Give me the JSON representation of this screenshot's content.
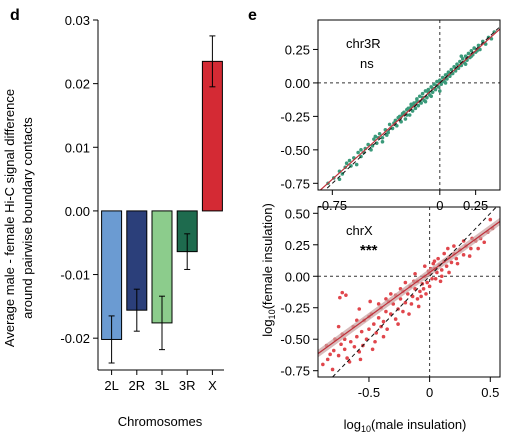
{
  "chart_data": [
    {
      "panel_label": "d",
      "type": "bar",
      "categories": [
        "2L",
        "2R",
        "3L",
        "3R",
        "X"
      ],
      "values": [
        -0.0202,
        -0.0156,
        -0.0176,
        -0.0064,
        0.0235
      ],
      "error": [
        0.0037,
        0.0033,
        0.0042,
        0.0028,
        0.004
      ],
      "colors": [
        "#6b9bd2",
        "#2b3f7a",
        "#8ccc8c",
        "#1e6b4e",
        "#d42a34"
      ],
      "xlabel": "Chromosomes",
      "ylabel": [
        "Average male - female Hi-C signal difference",
        "around pairwise boundary contacts"
      ],
      "ylim": [
        -0.025,
        0.03
      ],
      "yticks": [
        -0.02,
        -0.01,
        0.0,
        0.01,
        0.02,
        0.03
      ],
      "ytick_labels": [
        "-0.02",
        "-0.01",
        "0.00",
        "0.01",
        "0.02",
        "0.03"
      ]
    },
    {
      "panel_label": "e",
      "type": "scatter",
      "shared_ylabel": "log10(female insulation)",
      "ylabel_base": "log",
      "ylabel_sub": "10",
      "ylabel_rest": "(female insulation)",
      "xlabel_base": "log",
      "xlabel_sub": "10",
      "xlabel_rest": "(male insulation)",
      "point_color": "#3a9a7a",
      "panels": [
        {
          "name": "chr3R",
          "significance": "ns",
          "point_color": "#3a9a7a",
          "xlim": [
            -0.85,
            0.42
          ],
          "ylim": [
            -0.8,
            0.47
          ],
          "xticks": [
            -0.75,
            0,
            0.25
          ],
          "xtick_labels": [
            "-0.75",
            "0",
            "0.25"
          ],
          "yticks": [
            0.25,
            0.0,
            -0.25,
            -0.5,
            -0.75
          ],
          "ytick_labels": [
            "0.25",
            "0.00",
            "-0.25",
            "-0.50",
            "-0.75"
          ],
          "fit": {
            "slope": 0.96,
            "intercept": 0.0
          },
          "points": [
            [
              -0.78,
              -0.75
            ],
            [
              -0.74,
              -0.71
            ],
            [
              -0.7,
              -0.66
            ],
            [
              -0.66,
              -0.63
            ],
            [
              -0.63,
              -0.58
            ],
            [
              -0.6,
              -0.56
            ],
            [
              -0.57,
              -0.52
            ],
            [
              -0.55,
              -0.55
            ],
            [
              -0.52,
              -0.49
            ],
            [
              -0.5,
              -0.46
            ],
            [
              -0.48,
              -0.5
            ],
            [
              -0.46,
              -0.42
            ],
            [
              -0.44,
              -0.45
            ],
            [
              -0.42,
              -0.38
            ],
            [
              -0.4,
              -0.41
            ],
            [
              -0.38,
              -0.35
            ],
            [
              -0.36,
              -0.37
            ],
            [
              -0.35,
              -0.31
            ],
            [
              -0.33,
              -0.34
            ],
            [
              -0.31,
              -0.28
            ],
            [
              -0.3,
              -0.32
            ],
            [
              -0.28,
              -0.25
            ],
            [
              -0.27,
              -0.29
            ],
            [
              -0.25,
              -0.22
            ],
            [
              -0.24,
              -0.27
            ],
            [
              -0.22,
              -0.19
            ],
            [
              -0.21,
              -0.24
            ],
            [
              -0.2,
              -0.16
            ],
            [
              -0.19,
              -0.21
            ],
            [
              -0.18,
              -0.15
            ],
            [
              -0.17,
              -0.19
            ],
            [
              -0.16,
              -0.12
            ],
            [
              -0.15,
              -0.17
            ],
            [
              -0.14,
              -0.1
            ],
            [
              -0.13,
              -0.15
            ],
            [
              -0.12,
              -0.08
            ],
            [
              -0.11,
              -0.13
            ],
            [
              -0.1,
              -0.06
            ],
            [
              -0.09,
              -0.11
            ],
            [
              -0.08,
              -0.05
            ],
            [
              -0.07,
              -0.09
            ],
            [
              -0.06,
              -0.03
            ],
            [
              -0.05,
              -0.07
            ],
            [
              -0.04,
              -0.01
            ],
            [
              -0.03,
              -0.05
            ],
            [
              -0.02,
              0.01
            ],
            [
              -0.01,
              -0.03
            ],
            [
              0.0,
              0.02
            ],
            [
              0.01,
              -0.01
            ],
            [
              0.02,
              0.04
            ],
            [
              0.03,
              0.01
            ],
            [
              0.04,
              0.06
            ],
            [
              0.05,
              0.03
            ],
            [
              0.06,
              0.08
            ],
            [
              0.07,
              0.05
            ],
            [
              0.08,
              0.1
            ],
            [
              0.09,
              0.07
            ],
            [
              0.1,
              0.12
            ],
            [
              0.11,
              0.09
            ],
            [
              0.12,
              0.14
            ],
            [
              0.13,
              0.11
            ],
            [
              0.14,
              0.16
            ],
            [
              0.15,
              0.13
            ],
            [
              0.16,
              0.18
            ],
            [
              0.17,
              0.15
            ],
            [
              0.18,
              0.2
            ],
            [
              0.19,
              0.17
            ],
            [
              0.2,
              0.22
            ],
            [
              0.21,
              0.19
            ],
            [
              0.22,
              0.24
            ],
            [
              0.23,
              0.21
            ],
            [
              0.24,
              0.26
            ],
            [
              0.25,
              0.23
            ],
            [
              0.27,
              0.28
            ],
            [
              0.28,
              0.25
            ],
            [
              0.3,
              0.31
            ],
            [
              0.32,
              0.29
            ],
            [
              0.34,
              0.34
            ],
            [
              0.36,
              0.33
            ],
            [
              0.38,
              0.38
            ],
            [
              -0.32,
              -0.3
            ],
            [
              -0.29,
              -0.26
            ],
            [
              -0.26,
              -0.23
            ],
            [
              -0.23,
              -0.2
            ],
            [
              -0.2,
              -0.18
            ],
            [
              -0.16,
              -0.14
            ],
            [
              -0.12,
              -0.11
            ],
            [
              -0.08,
              -0.07
            ],
            [
              -0.05,
              -0.04
            ],
            [
              -0.02,
              -0.02
            ],
            [
              0.01,
              0.01
            ],
            [
              0.03,
              0.03
            ],
            [
              0.05,
              0.06
            ],
            [
              0.08,
              0.07
            ],
            [
              0.11,
              0.11
            ],
            [
              0.14,
              0.13
            ],
            [
              -0.1,
              -0.14
            ],
            [
              -0.06,
              -0.1
            ],
            [
              0.0,
              -0.06
            ],
            [
              0.04,
              0.0
            ],
            [
              -0.4,
              -0.44
            ],
            [
              -0.45,
              -0.4
            ],
            [
              -0.55,
              -0.5
            ],
            [
              -0.58,
              -0.61
            ],
            [
              -0.65,
              -0.6
            ],
            [
              -0.68,
              -0.68
            ],
            [
              0.15,
              0.2
            ],
            [
              0.18,
              0.14
            ],
            [
              0.22,
              0.2
            ],
            [
              0.26,
              0.24
            ],
            [
              -0.7,
              -0.72
            ],
            [
              -0.62,
              -0.62
            ],
            [
              -0.53,
              -0.52
            ],
            [
              -0.47,
              -0.47
            ],
            [
              -0.43,
              -0.41
            ],
            [
              -0.37,
              -0.39
            ],
            [
              -0.27,
              -0.25
            ],
            [
              -0.23,
              -0.24
            ],
            [
              -0.18,
              -0.17
            ],
            [
              -0.14,
              -0.14
            ]
          ]
        },
        {
          "name": "chrX",
          "significance": "***",
          "point_color": "#e0464c",
          "xlim": [
            -0.92,
            0.58
          ],
          "ylim": [
            -0.8,
            0.55
          ],
          "xticks": [
            -0.5,
            0,
            0.5
          ],
          "xtick_labels": [
            "-0.5",
            "0",
            "0.5"
          ],
          "yticks": [
            0.5,
            0.25,
            0.0,
            -0.25,
            -0.5,
            -0.75
          ],
          "ytick_labels": [
            "0.50",
            "0.25",
            "0.00",
            "-0.25",
            "-0.50",
            "-0.75"
          ],
          "fit": {
            "slope": 0.7,
            "intercept": 0.03
          },
          "points": [
            [
              -0.88,
              -0.7
            ],
            [
              -0.85,
              -0.55
            ],
            [
              -0.82,
              -0.62
            ],
            [
              -0.8,
              -0.74
            ],
            [
              -0.78,
              -0.5
            ],
            [
              -0.75,
              -0.63
            ],
            [
              -0.72,
              -0.46
            ],
            [
              -0.7,
              -0.58
            ],
            [
              -0.68,
              -0.65
            ],
            [
              -0.65,
              -0.52
            ],
            [
              -0.63,
              -0.4
            ],
            [
              -0.6,
              -0.48
            ],
            [
              -0.58,
              -0.6
            ],
            [
              -0.56,
              -0.44
            ],
            [
              -0.54,
              -0.35
            ],
            [
              -0.52,
              -0.5
            ],
            [
              -0.5,
              -0.42
            ],
            [
              -0.48,
              -0.3
            ],
            [
              -0.46,
              -0.38
            ],
            [
              -0.44,
              -0.45
            ],
            [
              -0.42,
              -0.33
            ],
            [
              -0.4,
              -0.25
            ],
            [
              -0.38,
              -0.36
            ],
            [
              -0.36,
              -0.28
            ],
            [
              -0.34,
              -0.2
            ],
            [
              -0.32,
              -0.3
            ],
            [
              -0.3,
              -0.22
            ],
            [
              -0.28,
              -0.15
            ],
            [
              -0.26,
              -0.26
            ],
            [
              -0.24,
              -0.18
            ],
            [
              -0.22,
              -0.12
            ],
            [
              -0.2,
              -0.21
            ],
            [
              -0.18,
              -0.14
            ],
            [
              -0.16,
              -0.08
            ],
            [
              -0.14,
              -0.16
            ],
            [
              -0.12,
              -0.1
            ],
            [
              -0.1,
              -0.04
            ],
            [
              -0.08,
              -0.12
            ],
            [
              -0.06,
              -0.06
            ],
            [
              -0.04,
              0.0
            ],
            [
              -0.02,
              -0.05
            ],
            [
              0.0,
              0.02
            ],
            [
              0.02,
              -0.02
            ],
            [
              0.04,
              0.06
            ],
            [
              0.06,
              0.03
            ],
            [
              0.08,
              0.09
            ],
            [
              0.1,
              0.05
            ],
            [
              0.12,
              0.12
            ],
            [
              0.14,
              0.08
            ],
            [
              0.16,
              0.15
            ],
            [
              0.18,
              0.11
            ],
            [
              0.2,
              0.18
            ],
            [
              0.22,
              0.14
            ],
            [
              0.25,
              0.21
            ],
            [
              0.28,
              0.17
            ],
            [
              0.3,
              0.24
            ],
            [
              0.34,
              0.22
            ],
            [
              0.38,
              0.28
            ],
            [
              0.42,
              0.3
            ],
            [
              0.48,
              0.35
            ],
            [
              -0.75,
              -0.4
            ],
            [
              -0.7,
              -0.5
            ],
            [
              -0.62,
              -0.56
            ],
            [
              -0.55,
              -0.55
            ],
            [
              -0.45,
              -0.52
            ],
            [
              -0.4,
              -0.4
            ],
            [
              -0.35,
              -0.42
            ],
            [
              -0.28,
              -0.34
            ],
            [
              -0.22,
              -0.28
            ],
            [
              -0.15,
              -0.22
            ],
            [
              -0.1,
              -0.18
            ],
            [
              -0.05,
              -0.1
            ],
            [
              0.0,
              -0.08
            ],
            [
              0.05,
              -0.02
            ],
            [
              0.1,
              0.0
            ],
            [
              -0.6,
              -0.35
            ],
            [
              -0.5,
              -0.32
            ],
            [
              -0.42,
              -0.22
            ],
            [
              -0.32,
              -0.14
            ],
            [
              -0.2,
              -0.05
            ],
            [
              -0.12,
              0.02
            ],
            [
              -0.04,
              0.08
            ],
            [
              0.04,
              0.12
            ],
            [
              0.12,
              0.18
            ],
            [
              0.2,
              0.24
            ],
            [
              0.5,
              0.45
            ],
            [
              0.45,
              0.27
            ],
            [
              0.35,
              0.3
            ],
            [
              0.28,
              0.28
            ],
            [
              0.15,
              0.22
            ],
            [
              -0.66,
              -0.68
            ],
            [
              -0.57,
              -0.66
            ],
            [
              -0.47,
              -0.58
            ],
            [
              -0.38,
              -0.48
            ],
            [
              -0.26,
              -0.38
            ],
            [
              -0.17,
              -0.3
            ],
            [
              -0.09,
              -0.24
            ],
            [
              -0.84,
              -0.66
            ],
            [
              -0.79,
              -0.59
            ],
            [
              -0.73,
              -0.54
            ],
            [
              -0.74,
              -0.17
            ],
            [
              -0.72,
              -0.13
            ],
            [
              -0.69,
              -0.15
            ],
            [
              0.01,
              0.06
            ],
            [
              0.03,
              0.1
            ],
            [
              -0.01,
              0.04
            ],
            [
              0.07,
              0.14
            ],
            [
              -0.03,
              -0.14
            ],
            [
              -0.07,
              -0.16
            ],
            [
              0.09,
              -0.04
            ],
            [
              -0.58,
              -0.26
            ],
            [
              -0.49,
              -0.2
            ],
            [
              -0.36,
              -0.18
            ],
            [
              -0.24,
              -0.1
            ],
            [
              -0.13,
              -0.04
            ],
            [
              0.16,
              0.03
            ],
            [
              0.23,
              0.1
            ],
            [
              0.33,
              0.16
            ],
            [
              0.4,
              0.22
            ],
            [
              0.52,
              0.38
            ]
          ]
        }
      ]
    }
  ]
}
